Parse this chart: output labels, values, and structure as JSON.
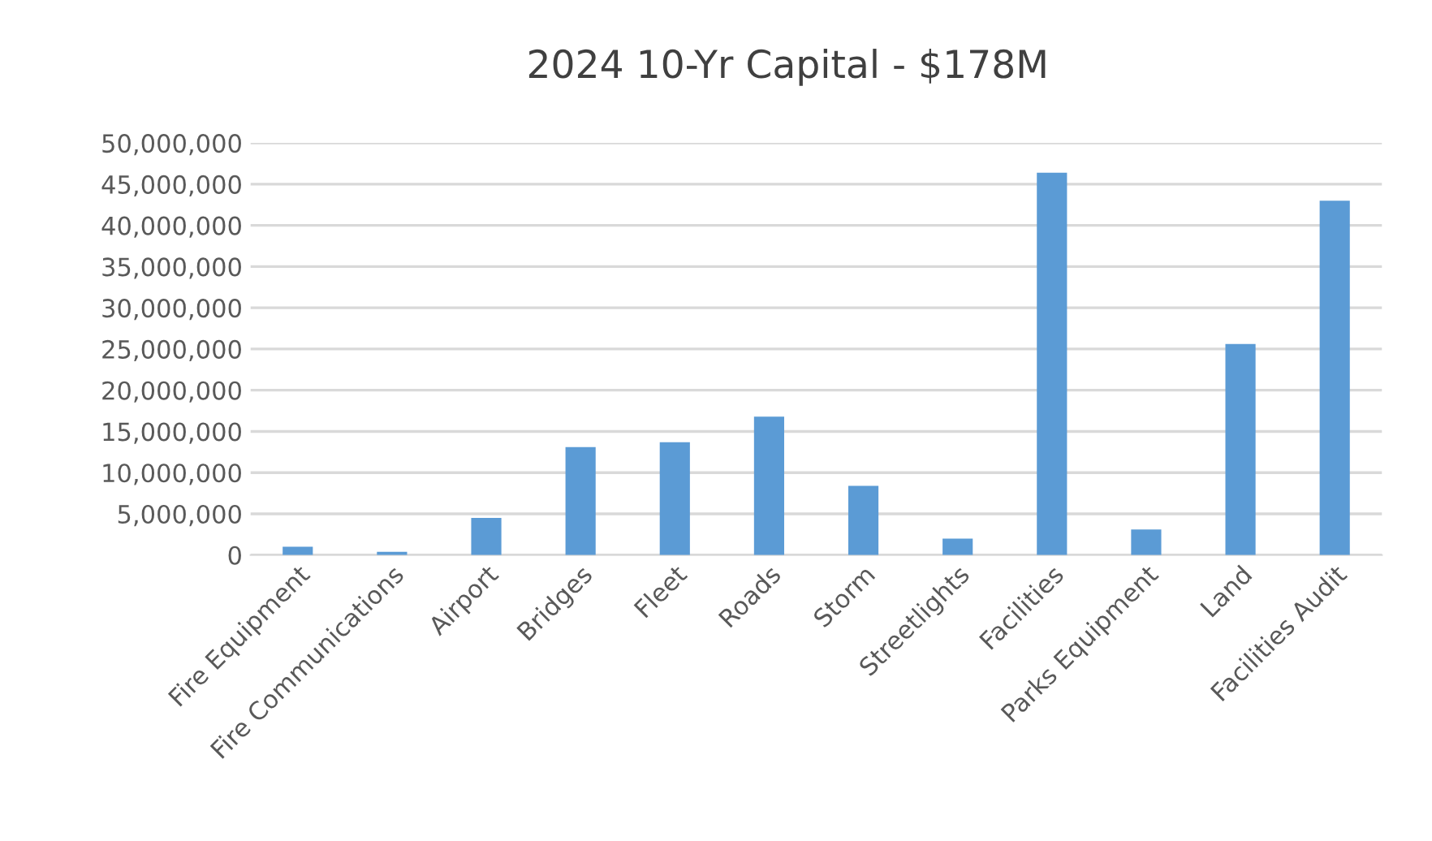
{
  "chart_data": {
    "type": "bar",
    "title": "2024 10-Yr Capital - $178M",
    "categories": [
      "Fire Equipment",
      "Fire Communications",
      "Airport",
      "Bridges",
      "Fleet",
      "Roads",
      "Storm",
      "Streetlights",
      "Facilities",
      "Parks Equipment",
      "Land",
      "Facilities Audit"
    ],
    "values": [
      1000000,
      400000,
      4500000,
      13100000,
      13700000,
      16800000,
      8400000,
      2000000,
      46400000,
      3100000,
      25600000,
      43000000
    ],
    "color": "#5b9bd5",
    "ylim": [
      0,
      50000000
    ],
    "yticks": [
      {
        "value": 0,
        "label": "0"
      },
      {
        "value": 5000000,
        "label": "5,000,000"
      },
      {
        "value": 10000000,
        "label": "10,000,000"
      },
      {
        "value": 15000000,
        "label": "15,000,000"
      },
      {
        "value": 20000000,
        "label": "20,000,000"
      },
      {
        "value": 25000000,
        "label": "25,000,000"
      },
      {
        "value": 30000000,
        "label": "30,000,000"
      },
      {
        "value": 35000000,
        "label": "35,000,000"
      },
      {
        "value": 40000000,
        "label": "40,000,000"
      },
      {
        "value": 45000000,
        "label": "45,000,000"
      },
      {
        "value": 50000000,
        "label": "50,000,000"
      }
    ],
    "grid": "y"
  }
}
